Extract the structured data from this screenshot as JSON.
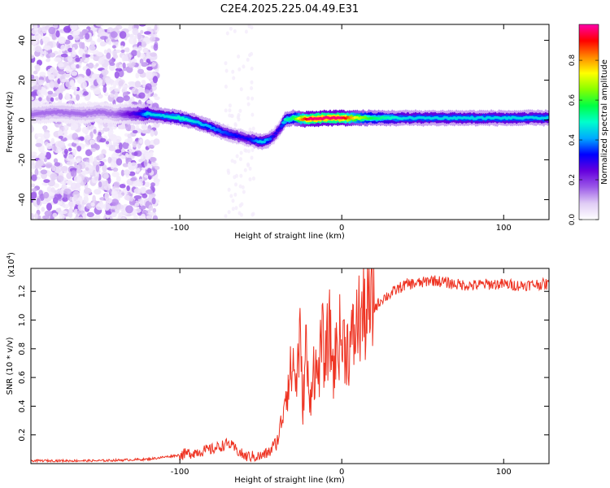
{
  "figure_title": "C2E4.2025.225.04.49.E31",
  "chart_data": [
    {
      "type": "heatmap",
      "xlabel": "Height of straight line (km)",
      "ylabel": "Frequency (Hz)",
      "xlim": [
        -192,
        128
      ],
      "ylim": [
        -50,
        48
      ],
      "xticks": [
        -100,
        0,
        100
      ],
      "yticks": [
        -40,
        -20,
        0,
        20,
        40
      ],
      "colorbar": {
        "label": "Normalized spectral amplitude",
        "range": [
          0,
          0.98
        ],
        "ticks": [
          0.0,
          0.2,
          0.4,
          0.6,
          0.8
        ],
        "colormap": [
          "#ffffff",
          "#e0ccf5",
          "#9b59e8",
          "#6600dd",
          "#0000ff",
          "#00aaff",
          "#00ffcc",
          "#00ff44",
          "#88ff00",
          "#ffff00",
          "#ff8800",
          "#ff0000",
          "#ff00aa"
        ]
      },
      "ridge": {
        "x": [
          -190,
          -175,
          -160,
          -150,
          -140,
          -125,
          -120,
          -110,
          -100,
          -90,
          -80,
          -70,
          -60,
          -55,
          -50,
          -45,
          -42,
          -38,
          -35,
          -30,
          -25,
          -20,
          -10,
          0,
          10,
          20,
          40,
          60,
          80,
          100,
          128
        ],
        "y": [
          3,
          4,
          3,
          4,
          3,
          3,
          3,
          2,
          1,
          -1,
          -4,
          -7,
          -9,
          -10,
          -11,
          -10,
          -8,
          -4,
          0,
          1,
          0.5,
          0.5,
          1,
          1,
          1,
          1,
          1,
          1,
          1,
          1,
          1
        ],
        "amplitude": [
          0.15,
          0.15,
          0.15,
          0.15,
          0.15,
          0.3,
          0.45,
          0.45,
          0.5,
          0.45,
          0.4,
          0.35,
          0.3,
          0.35,
          0.45,
          0.4,
          0.3,
          0.3,
          0.5,
          0.55,
          0.8,
          0.95,
          0.95,
          0.95,
          0.7,
          0.55,
          0.45,
          0.45,
          0.45,
          0.45,
          0.45
        ]
      },
      "noise_region_x": [
        -192,
        -120
      ]
    },
    {
      "type": "line",
      "xlabel": "Height of straight line (km)",
      "ylabel": "SNR (10 * v/v)",
      "y_multiplier": "(x10",
      "y_multiplier_exponent": "4",
      "y_multiplier_close": ")",
      "xlim": [
        -192,
        128
      ],
      "ylim": [
        0,
        1.36
      ],
      "xticks": [
        -100,
        0,
        100
      ],
      "yticks": [
        0.2,
        0.4,
        0.6,
        0.8,
        1.0,
        1.2
      ],
      "color": "#ee3322",
      "series": [
        {
          "x": [
            -192,
            -150,
            -120,
            -100,
            -90,
            -80,
            -75,
            -70,
            -60,
            -50,
            -45,
            -40,
            -37,
            -35,
            -32,
            -30,
            -28,
            -26,
            -24,
            -22,
            -20,
            -18,
            -15,
            -12,
            -10,
            -8,
            -5,
            -2,
            0,
            5,
            8,
            10,
            15,
            20,
            25,
            30,
            35,
            40,
            50,
            55,
            60,
            70,
            80,
            90,
            100,
            110,
            120,
            128
          ],
          "y": [
            0.02,
            0.02,
            0.03,
            0.06,
            0.08,
            0.1,
            0.12,
            0.14,
            0.05,
            0.05,
            0.08,
            0.15,
            0.3,
            0.5,
            0.6,
            0.7,
            0.55,
            0.9,
            0.4,
            0.85,
            0.35,
            0.7,
            0.6,
            0.85,
            0.7,
            0.95,
            0.65,
            0.9,
            0.85,
            0.8,
            0.9,
            1.0,
            1.05,
            1.08,
            1.15,
            1.18,
            1.22,
            1.25,
            1.26,
            1.28,
            1.27,
            1.25,
            1.24,
            1.25,
            1.25,
            1.24,
            1.25,
            1.25
          ]
        }
      ]
    }
  ]
}
